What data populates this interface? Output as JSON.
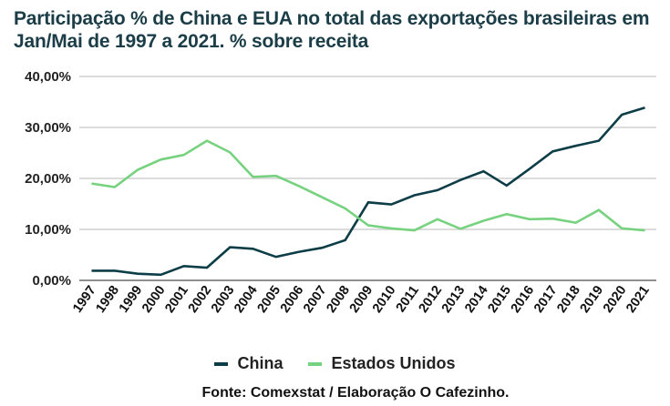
{
  "title": "Participação % de China e EUA no total das exportações brasileiras em Jan/Mai de 1997 a 2021. % sobre receita",
  "source": "Fonte: Comexstat / Elaboração O Cafezinho.",
  "chart_data": {
    "type": "line",
    "title": "Participação % de China e EUA no total das exportações brasileiras em Jan/Mai de 1997 a 2021. % sobre receita",
    "xlabel": "",
    "ylabel": "",
    "ylim": [
      0,
      40
    ],
    "yticks": [
      0,
      10,
      20,
      30,
      40
    ],
    "ytick_labels": [
      "0,00%",
      "10,00%",
      "20,00%",
      "30,00%",
      "40,00%"
    ],
    "grid": true,
    "legend_position": "bottom-center",
    "x": [
      "1997",
      "1998",
      "1999",
      "2000",
      "2001",
      "2002",
      "2003",
      "2004",
      "2005",
      "2006",
      "2007",
      "2008",
      "2009",
      "2010",
      "2011",
      "2012",
      "2013",
      "2014",
      "2015",
      "2016",
      "2017",
      "2018",
      "2019",
      "2020",
      "2021"
    ],
    "series": [
      {
        "name": "China",
        "color": "#0d3d47",
        "values": [
          1.9,
          1.9,
          1.3,
          1.1,
          2.8,
          2.5,
          6.5,
          6.2,
          4.6,
          5.6,
          6.4,
          7.9,
          15.3,
          14.9,
          16.7,
          17.7,
          19.7,
          21.4,
          18.6,
          21.9,
          25.3,
          26.4,
          27.4,
          32.5,
          33.9
        ]
      },
      {
        "name": "Estados Unidos",
        "color": "#76d27e",
        "values": [
          19.0,
          18.3,
          21.7,
          23.7,
          24.6,
          27.4,
          25.1,
          20.3,
          20.5,
          18.5,
          16.3,
          14.1,
          10.8,
          10.2,
          9.8,
          12.0,
          10.1,
          11.7,
          13.0,
          12.0,
          12.1,
          11.3,
          13.8,
          10.2,
          9.8
        ]
      }
    ]
  }
}
